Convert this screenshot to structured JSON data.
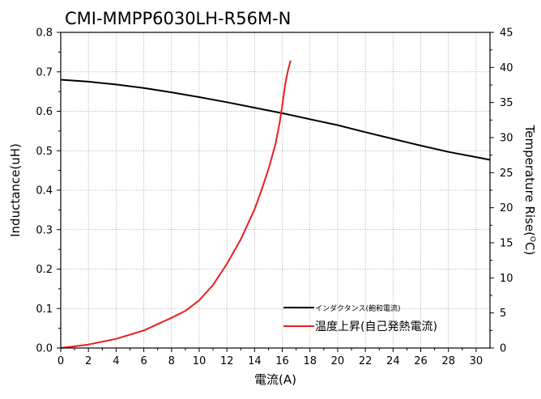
{
  "chart_data": {
    "type": "line",
    "title": "CMI-MMPP6030LH-R56M-N",
    "xlabel": "電流(A)",
    "ylabel": "Inductance(uH)",
    "y2label_main": "Temperature Rise(",
    "y2label_sup": "O",
    "y2label_end": "C)",
    "xlim": [
      0,
      31
    ],
    "ylim": [
      0,
      0.8
    ],
    "y2lim": [
      0,
      45
    ],
    "xticks": [
      0,
      2,
      4,
      6,
      8,
      10,
      12,
      14,
      16,
      18,
      20,
      22,
      24,
      26,
      28,
      30
    ],
    "yticks": [
      "0.0",
      "0.1",
      "0.2",
      "0.3",
      "0.4",
      "0.5",
      "0.6",
      "0.7",
      "0.8"
    ],
    "y2ticks": [
      0,
      5,
      10,
      15,
      20,
      25,
      30,
      35,
      40,
      45
    ],
    "grid": true,
    "legend_position": "bottom-right",
    "series": [
      {
        "name": "インダクタンス(飽和電流)",
        "axis": "left",
        "color": "#000000",
        "x": [
          0,
          2,
          4,
          6,
          8,
          10,
          12,
          14,
          16,
          18,
          20,
          22,
          24,
          26,
          28,
          30,
          31
        ],
        "y": [
          0.68,
          0.675,
          0.668,
          0.659,
          0.648,
          0.636,
          0.623,
          0.609,
          0.595,
          0.58,
          0.565,
          0.547,
          0.53,
          0.513,
          0.497,
          0.484,
          0.477
        ]
      },
      {
        "name": "温度上昇(自己発熱電流)",
        "axis": "right",
        "color": "#ee1c1c",
        "x": [
          0,
          2,
          4,
          6,
          8,
          9,
          10,
          11,
          12,
          13,
          14,
          14.5,
          15,
          15.5,
          15.8,
          16,
          16.2,
          16.4,
          16.6
        ],
        "y": [
          0,
          0.5,
          1.3,
          2.5,
          4.3,
          5.3,
          6.8,
          9,
          12,
          15.5,
          19.8,
          22.5,
          25.5,
          29,
          32,
          34.5,
          37.5,
          39.5,
          41
        ]
      }
    ]
  }
}
